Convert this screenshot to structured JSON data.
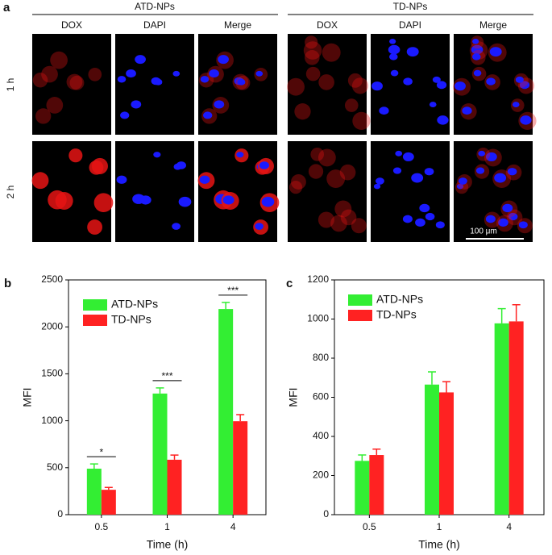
{
  "panel_a": {
    "label": "a",
    "groups": [
      {
        "title": "ATD-NPs",
        "channels": [
          "DOX",
          "DAPI",
          "Merge"
        ]
      },
      {
        "title": "TD-NPs",
        "channels": [
          "DOX",
          "DAPI",
          "Merge"
        ]
      }
    ],
    "rows": [
      "1 h",
      "2 h"
    ],
    "scale_bar": "100 μm"
  },
  "chart_data": [
    {
      "type": "bar",
      "panel_label": "b",
      "ylabel": "MFI",
      "xlabel": "Time (h)",
      "categories": [
        "0.5",
        "1",
        "4"
      ],
      "series": [
        {
          "name": "ATD-NPs",
          "color": "#33ee33",
          "values": [
            490,
            1290,
            2190
          ],
          "errors": [
            50,
            60,
            70
          ]
        },
        {
          "name": "TD-NPs",
          "color": "#ff2222",
          "values": [
            265,
            585,
            995
          ],
          "errors": [
            25,
            50,
            70
          ]
        }
      ],
      "annotations": [
        "*",
        "***",
        "***"
      ],
      "ylim": [
        0,
        2500
      ],
      "yticks": [
        0,
        500,
        1000,
        1500,
        2000,
        2500
      ],
      "legend": "upper left"
    },
    {
      "type": "bar",
      "panel_label": "c",
      "ylabel": "MFI",
      "xlabel": "Time (h)",
      "categories": [
        "0.5",
        "1",
        "4"
      ],
      "series": [
        {
          "name": "ATD-NPs",
          "color": "#33ee33",
          "values": [
            275,
            665,
            978
          ],
          "errors": [
            30,
            65,
            75
          ]
        },
        {
          "name": "TD-NPs",
          "color": "#ff2222",
          "values": [
            305,
            625,
            988
          ],
          "errors": [
            30,
            55,
            85
          ]
        }
      ],
      "ylim": [
        0,
        1200
      ],
      "yticks": [
        0,
        200,
        400,
        600,
        800,
        1000,
        1200
      ],
      "legend": "upper left"
    }
  ]
}
